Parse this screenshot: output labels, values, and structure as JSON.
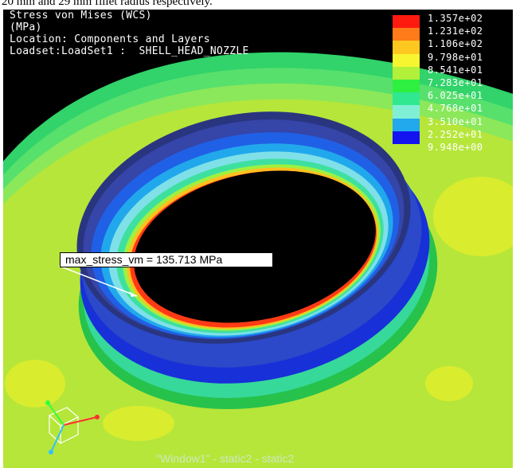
{
  "caption": "20 mm and 29 mm fillet radius respectively.",
  "result": {
    "title": "Stress von Mises (WCS)",
    "units": "(MPa)",
    "location": "Location: Components and Layers",
    "loadset": "Loadset:LoadSet1 :  SHELL_HEAD_NOZZLE"
  },
  "legend": {
    "labels": [
      "1.357e+02",
      "1.231e+02",
      "1.106e+02",
      "9.798e+01",
      "8.541e+01",
      "7.283e+01",
      "6.025e+01",
      "4.768e+01",
      "3.510e+01",
      "2.252e+01",
      "9.948e+00"
    ],
    "colors": [
      "#ff1a10",
      "#ff7a18",
      "#ffc820",
      "#f6f530",
      "#b2f03a",
      "#2ef040",
      "#30e890",
      "#7ff0d6",
      "#22a8ec",
      "#1414f0",
      "#26307e"
    ]
  },
  "annotation": {
    "label": "max_stress_vm = 135.713  MPa"
  },
  "window_title": "\"Window1\" - static2 - static2",
  "colors": {
    "background": "#000000",
    "shell_surface": "#b6e63a",
    "hot_spot": "#ff1a10"
  }
}
